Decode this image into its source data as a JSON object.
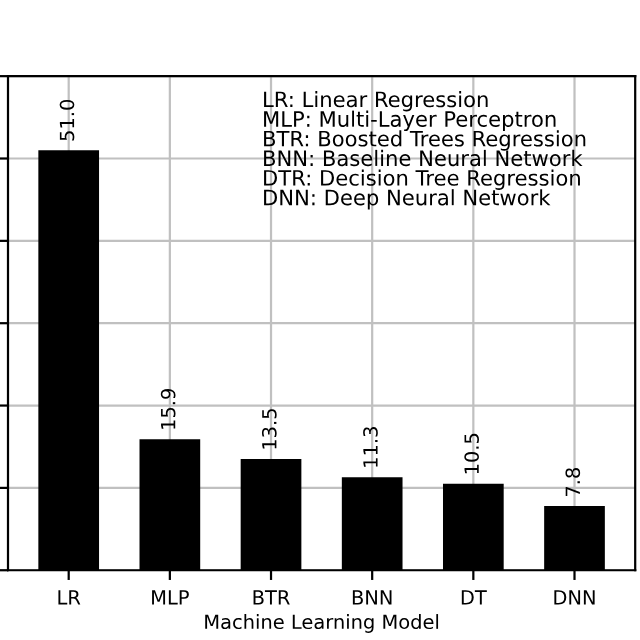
{
  "chart_data": {
    "type": "bar",
    "xlabel": "Machine Learning Model",
    "categories": [
      "LR",
      "MLP",
      "BTR",
      "BNN",
      "DT",
      "DNN"
    ],
    "values": [
      51.0,
      15.9,
      13.5,
      11.3,
      10.5,
      7.8
    ],
    "color": "#000000",
    "ylim": [
      0,
      60
    ],
    "yticks": [
      {
        "value": 0,
        "label": null
      },
      {
        "value": 10,
        "label": null
      },
      {
        "value": 20,
        "label": null
      },
      {
        "value": 30,
        "label": null
      },
      {
        "value": 40,
        "label": null
      },
      {
        "value": 50,
        "label": null
      },
      {
        "value": 60,
        "label": null
      }
    ],
    "tick_labels": "x",
    "grid": true,
    "value_labels": [
      "51.0",
      "15.9",
      "13.5",
      "11.3",
      "10.5",
      "7.8"
    ],
    "annotations": [
      "LR: Linear Regression\nMLP: Multi-Layer Perceptron\nBTR: Boosted Trees Regression\nBNN: Baseline Neural Network\nDTR: Decision Tree Regression\nDNN: Deep Neural Network"
    ]
  }
}
